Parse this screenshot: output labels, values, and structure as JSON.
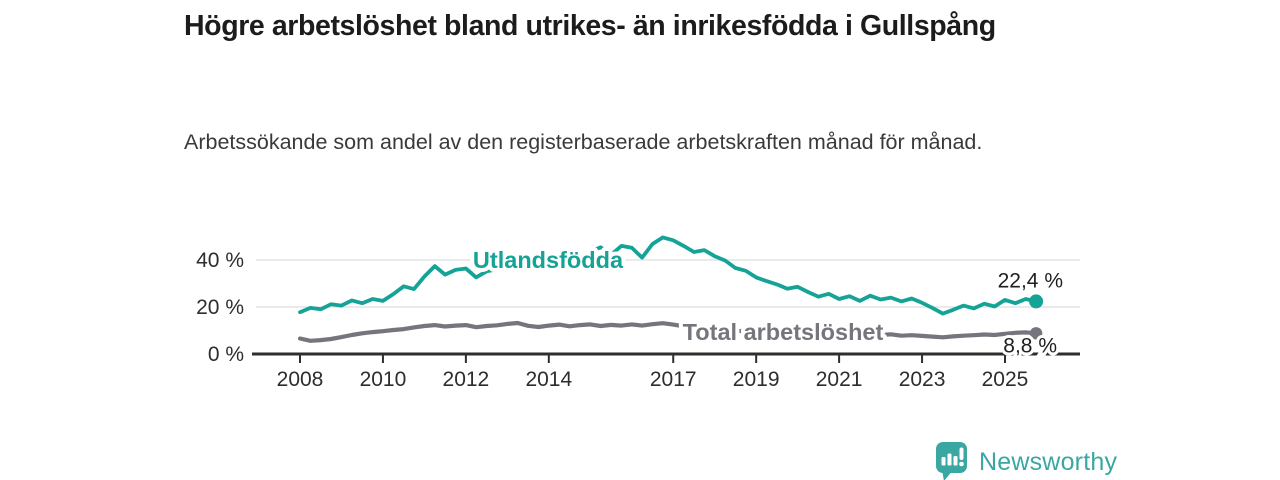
{
  "title": "Högre arbetslöshet bland utrikes- än inrikesfödda i Gullspång",
  "subtitle": "Arbetssökande som andel av den registerbaserade arbetskraften månad för månad.",
  "branding": {
    "name": "Newsworthy",
    "icon": "bar-chart-speech-bubble-icon",
    "color": "#3aa7a2"
  },
  "colors": {
    "foreign_born_line": "#14a396",
    "total_line": "#75757d",
    "axis": "#2e2e2e",
    "gridline": "#e4e4e4",
    "tick_label": "#2d2d2d",
    "value_label": "#1f1f1f",
    "title_text": "#1c1c1c",
    "subtitle_text": "#3a3a3a"
  },
  "chart_data": {
    "type": "line",
    "title": "Högre arbetslöshet bland utrikes- än inrikesfödda i Gullspång",
    "subtitle": "Arbetssökande som andel av den registerbaserade arbetskraften månad för månad.",
    "xlabel": "",
    "ylabel": "",
    "x_range": [
      2007.9,
      2026.0
    ],
    "ylim": [
      0,
      52
    ],
    "grid": "horizontal",
    "legend_position": "inline-labels",
    "x_ticks": [
      {
        "year": 2008,
        "label": "2008"
      },
      {
        "year": 2010,
        "label": "2010"
      },
      {
        "year": 2012,
        "label": "2012"
      },
      {
        "year": 2014,
        "label": "2014"
      },
      {
        "year": 2017,
        "label": "2017"
      },
      {
        "year": 2019,
        "label": "2019"
      },
      {
        "year": 2021,
        "label": "2021"
      },
      {
        "year": 2023,
        "label": "2023"
      },
      {
        "year": 2025,
        "label": "2025"
      }
    ],
    "y_ticks": [
      {
        "value": 0,
        "label": "0 %"
      },
      {
        "value": 20,
        "label": "20 %"
      },
      {
        "value": 40,
        "label": "40 %"
      }
    ],
    "series": [
      {
        "name": "Utlandsfödda",
        "color": "#14a396",
        "end_label": "22,4 %",
        "end_value": 22.4,
        "points": [
          [
            2008,
            17.8
          ],
          [
            2008.25,
            19.6
          ],
          [
            2008.5,
            19
          ],
          [
            2008.75,
            21.2
          ],
          [
            2009,
            20.6
          ],
          [
            2009.25,
            22.8
          ],
          [
            2009.5,
            21.6
          ],
          [
            2009.75,
            23.4
          ],
          [
            2010,
            22.6
          ],
          [
            2010.25,
            25.5
          ],
          [
            2010.5,
            28.8
          ],
          [
            2010.75,
            27.6
          ],
          [
            2011,
            33
          ],
          [
            2011.25,
            37.4
          ],
          [
            2011.5,
            33.8
          ],
          [
            2011.75,
            35.8
          ],
          [
            2012,
            36.4
          ],
          [
            2012.25,
            32.6
          ],
          [
            2012.5,
            35.2
          ],
          [
            2012.75,
            36
          ],
          [
            2013,
            37.2
          ],
          [
            2013.25,
            35.8
          ],
          [
            2013.5,
            37.6
          ],
          [
            2013.75,
            36.6
          ],
          [
            2014,
            38.4
          ],
          [
            2014.25,
            39.6
          ],
          [
            2014.5,
            38.8
          ],
          [
            2014.75,
            41
          ],
          [
            2015,
            43.6
          ],
          [
            2015.25,
            45.4
          ],
          [
            2015.5,
            42.2
          ],
          [
            2015.75,
            46
          ],
          [
            2016,
            45.2
          ],
          [
            2016.25,
            41
          ],
          [
            2016.5,
            46.8
          ],
          [
            2016.75,
            49.6
          ],
          [
            2017,
            48.4
          ],
          [
            2017.25,
            46
          ],
          [
            2017.5,
            43.4
          ],
          [
            2017.75,
            44.2
          ],
          [
            2018,
            41.6
          ],
          [
            2018.25,
            39.8
          ],
          [
            2018.5,
            36.6
          ],
          [
            2018.75,
            35.4
          ],
          [
            2019,
            32.6
          ],
          [
            2019.25,
            31
          ],
          [
            2019.5,
            29.6
          ],
          [
            2019.75,
            27.8
          ],
          [
            2020,
            28.6
          ],
          [
            2020.25,
            26.4
          ],
          [
            2020.5,
            24.4
          ],
          [
            2020.75,
            25.6
          ],
          [
            2021,
            23.4
          ],
          [
            2021.25,
            24.6
          ],
          [
            2021.5,
            22.6
          ],
          [
            2021.75,
            24.8
          ],
          [
            2022,
            23.2
          ],
          [
            2022.25,
            24
          ],
          [
            2022.5,
            22.4
          ],
          [
            2022.75,
            23.6
          ],
          [
            2023,
            21.8
          ],
          [
            2023.25,
            19.6
          ],
          [
            2023.5,
            17.2
          ],
          [
            2023.75,
            18.8
          ],
          [
            2024,
            20.6
          ],
          [
            2024.25,
            19.4
          ],
          [
            2024.5,
            21.4
          ],
          [
            2024.75,
            20.2
          ],
          [
            2025,
            23
          ],
          [
            2025.25,
            21.6
          ],
          [
            2025.5,
            23.4
          ],
          [
            2025.75,
            22.4
          ]
        ]
      },
      {
        "name": "Total arbetslöshet",
        "color": "#75757d",
        "end_label": "8,8 %",
        "end_value": 8.8,
        "points": [
          [
            2008,
            6.6
          ],
          [
            2008.25,
            5.6
          ],
          [
            2008.5,
            5.9
          ],
          [
            2008.75,
            6.4
          ],
          [
            2009,
            7.2
          ],
          [
            2009.25,
            8.1
          ],
          [
            2009.5,
            8.8
          ],
          [
            2009.75,
            9.3
          ],
          [
            2010,
            9.7
          ],
          [
            2010.25,
            10.2
          ],
          [
            2010.5,
            10.6
          ],
          [
            2010.75,
            11.3
          ],
          [
            2011,
            11.9
          ],
          [
            2011.25,
            12.3
          ],
          [
            2011.5,
            11.7
          ],
          [
            2011.75,
            12.1
          ],
          [
            2012,
            12.3
          ],
          [
            2012.25,
            11.4
          ],
          [
            2012.5,
            11.9
          ],
          [
            2012.75,
            12.2
          ],
          [
            2013,
            12.8
          ],
          [
            2013.25,
            13.2
          ],
          [
            2013.5,
            12
          ],
          [
            2013.75,
            11.5
          ],
          [
            2014,
            12.1
          ],
          [
            2014.25,
            12.5
          ],
          [
            2014.5,
            11.8
          ],
          [
            2014.75,
            12.3
          ],
          [
            2015,
            12.6
          ],
          [
            2015.25,
            11.9
          ],
          [
            2015.5,
            12.4
          ],
          [
            2015.75,
            12.1
          ],
          [
            2016,
            12.6
          ],
          [
            2016.25,
            12.1
          ],
          [
            2016.5,
            12.7
          ],
          [
            2016.75,
            13.1
          ],
          [
            2017,
            12.5
          ],
          [
            2017.25,
            11.8
          ],
          [
            2017.5,
            11.2
          ],
          [
            2017.75,
            10.9
          ],
          [
            2018,
            10.6
          ],
          [
            2018.25,
            10.2
          ],
          [
            2018.5,
            9.9
          ],
          [
            2018.75,
            9.6
          ],
          [
            2019,
            9.4
          ],
          [
            2019.25,
            9.2
          ],
          [
            2019.5,
            9
          ],
          [
            2019.75,
            8.9
          ],
          [
            2020,
            9.3
          ],
          [
            2020.25,
            9.6
          ],
          [
            2020.5,
            9.2
          ],
          [
            2020.75,
            8.9
          ],
          [
            2021,
            8.7
          ],
          [
            2021.25,
            8.5
          ],
          [
            2021.5,
            8.2
          ],
          [
            2021.75,
            7.9
          ],
          [
            2022,
            8.1
          ],
          [
            2022.25,
            8.4
          ],
          [
            2022.5,
            7.8
          ],
          [
            2022.75,
            8
          ],
          [
            2023,
            7.7
          ],
          [
            2023.25,
            7.4
          ],
          [
            2023.5,
            7.1
          ],
          [
            2023.75,
            7.5
          ],
          [
            2024,
            7.8
          ],
          [
            2024.25,
            8
          ],
          [
            2024.5,
            8.3
          ],
          [
            2024.75,
            8.1
          ],
          [
            2025,
            8.6
          ],
          [
            2025.25,
            9
          ],
          [
            2025.5,
            9.2
          ],
          [
            2025.75,
            8.8
          ]
        ]
      }
    ]
  }
}
